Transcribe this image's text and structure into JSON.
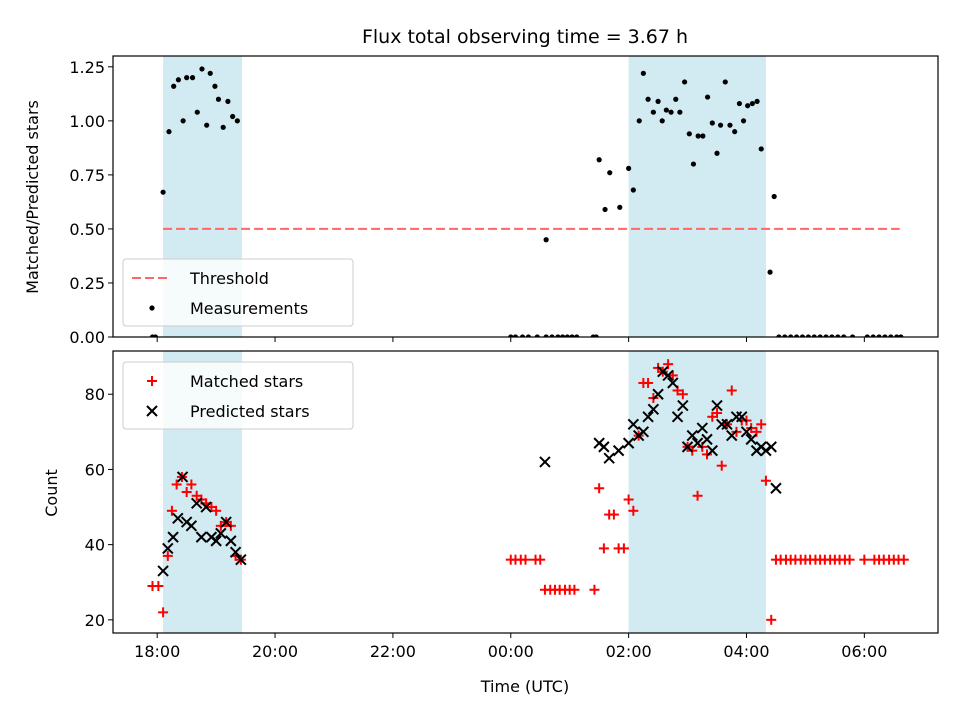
{
  "figure": {
    "title": "Flux total observing time = 3.67 h",
    "xlabel": "Time (UTC)"
  },
  "chart_data": [
    {
      "type": "scatter",
      "ylabel": "Matched/Predicted stars",
      "x_unit": "hours since 18:00 UTC (x tick labels shown)",
      "xlim": [
        -0.75,
        13.25
      ],
      "ylim": [
        0.0,
        1.3
      ],
      "x_ticks": [
        0,
        2,
        4,
        6,
        8,
        10,
        12
      ],
      "x_tick_labels": [
        "18:00",
        "20:00",
        "22:00",
        "00:00",
        "02:00",
        "04:00",
        "06:00"
      ],
      "y_ticks": [
        0.0,
        0.25,
        0.5,
        0.75,
        1.0,
        1.25
      ],
      "y_tick_labels": [
        "0.00",
        "0.25",
        "0.50",
        "0.75",
        "1.00",
        "1.25"
      ],
      "shaded_spans": [
        [
          0.1,
          1.44
        ],
        [
          8.0,
          10.33
        ]
      ],
      "shade_color": "#add8e6",
      "threshold": {
        "name": "Threshold",
        "y": 0.5,
        "x_range": [
          0.1,
          12.6
        ],
        "color": "#ff6666",
        "style": "dashed"
      },
      "series": [
        {
          "name": "Measurements",
          "color": "#000000",
          "marker": "dot",
          "points": [
            [
              -0.08,
              0.0
            ],
            [
              -0.03,
              0.0
            ],
            [
              0.1,
              0.67
            ],
            [
              0.2,
              0.95
            ],
            [
              0.28,
              1.16
            ],
            [
              0.36,
              1.19
            ],
            [
              0.44,
              1.0
            ],
            [
              0.5,
              1.2
            ],
            [
              0.6,
              1.2
            ],
            [
              0.68,
              1.04
            ],
            [
              0.76,
              1.24
            ],
            [
              0.84,
              0.98
            ],
            [
              0.9,
              1.22
            ],
            [
              0.98,
              1.16
            ],
            [
              1.04,
              1.1
            ],
            [
              1.12,
              0.97
            ],
            [
              1.2,
              1.09
            ],
            [
              1.28,
              1.02
            ],
            [
              1.36,
              1.0
            ],
            [
              6.0,
              0.0
            ],
            [
              6.08,
              0.0
            ],
            [
              6.2,
              0.0
            ],
            [
              6.3,
              0.0
            ],
            [
              6.45,
              0.0
            ],
            [
              6.6,
              0.45
            ],
            [
              6.6,
              0.0
            ],
            [
              6.7,
              0.0
            ],
            [
              6.8,
              0.0
            ],
            [
              6.88,
              0.0
            ],
            [
              6.96,
              0.0
            ],
            [
              7.04,
              0.0
            ],
            [
              7.12,
              0.0
            ],
            [
              7.4,
              0.0
            ],
            [
              7.45,
              0.0
            ],
            [
              7.5,
              0.82
            ],
            [
              7.6,
              0.59
            ],
            [
              7.68,
              0.76
            ],
            [
              7.85,
              0.6
            ],
            [
              8.0,
              0.78
            ],
            [
              8.08,
              0.68
            ],
            [
              8.18,
              1.0
            ],
            [
              8.25,
              1.22
            ],
            [
              8.33,
              1.1
            ],
            [
              8.42,
              1.04
            ],
            [
              8.5,
              1.09
            ],
            [
              8.57,
              1.0
            ],
            [
              8.64,
              1.05
            ],
            [
              8.72,
              1.04
            ],
            [
              8.8,
              1.1
            ],
            [
              8.87,
              1.04
            ],
            [
              8.95,
              1.18
            ],
            [
              9.03,
              0.94
            ],
            [
              9.1,
              0.8
            ],
            [
              9.18,
              0.93
            ],
            [
              9.26,
              0.93
            ],
            [
              9.34,
              1.11
            ],
            [
              9.42,
              0.99
            ],
            [
              9.5,
              0.85
            ],
            [
              9.56,
              0.98
            ],
            [
              9.64,
              1.18
            ],
            [
              9.72,
              0.98
            ],
            [
              9.8,
              0.95
            ],
            [
              9.88,
              1.08
            ],
            [
              9.95,
              1.0
            ],
            [
              10.02,
              1.07
            ],
            [
              10.1,
              1.08
            ],
            [
              10.18,
              1.09
            ],
            [
              10.25,
              0.87
            ],
            [
              10.4,
              0.3
            ],
            [
              10.47,
              0.65
            ],
            [
              10.55,
              0.0
            ],
            [
              10.65,
              0.0
            ],
            [
              10.75,
              0.0
            ],
            [
              10.85,
              0.0
            ],
            [
              10.95,
              0.0
            ],
            [
              11.05,
              0.0
            ],
            [
              11.15,
              0.0
            ],
            [
              11.25,
              0.0
            ],
            [
              11.35,
              0.0
            ],
            [
              11.45,
              0.0
            ],
            [
              11.55,
              0.0
            ],
            [
              11.65,
              0.0
            ],
            [
              11.8,
              0.0
            ],
            [
              12.05,
              0.0
            ],
            [
              12.15,
              0.0
            ],
            [
              12.25,
              0.0
            ],
            [
              12.35,
              0.0
            ],
            [
              12.45,
              0.0
            ],
            [
              12.55,
              0.0
            ],
            [
              12.62,
              0.0
            ]
          ]
        }
      ],
      "legend": {
        "position": "lower-left",
        "entries": [
          "Threshold",
          "Measurements"
        ]
      }
    },
    {
      "type": "scatter",
      "ylabel": "Count",
      "xlabel": "Time (UTC)",
      "x_unit": "hours since 18:00 UTC (x tick labels shown)",
      "xlim": [
        -0.75,
        13.25
      ],
      "ylim": [
        16.5,
        91.5
      ],
      "x_ticks": [
        0,
        2,
        4,
        6,
        8,
        10,
        12
      ],
      "x_tick_labels": [
        "18:00",
        "20:00",
        "22:00",
        "00:00",
        "02:00",
        "04:00",
        "06:00"
      ],
      "y_ticks": [
        20,
        40,
        60,
        80
      ],
      "y_tick_labels": [
        "20",
        "40",
        "60",
        "80"
      ],
      "shaded_spans": [
        [
          0.1,
          1.44
        ],
        [
          8.0,
          10.33
        ]
      ],
      "shade_color": "#add8e6",
      "series": [
        {
          "name": "Matched stars",
          "color": "#ff0000",
          "marker": "plus",
          "points": [
            [
              -0.08,
              29
            ],
            [
              0.02,
              29
            ],
            [
              0.1,
              22
            ],
            [
              0.18,
              37
            ],
            [
              0.25,
              49
            ],
            [
              0.33,
              56
            ],
            [
              0.42,
              58
            ],
            [
              0.5,
              54
            ],
            [
              0.58,
              56
            ],
            [
              0.67,
              53
            ],
            [
              0.75,
              52
            ],
            [
              0.83,
              51
            ],
            [
              0.92,
              50
            ],
            [
              1.0,
              49
            ],
            [
              1.08,
              45
            ],
            [
              1.17,
              46
            ],
            [
              1.25,
              45
            ],
            [
              1.33,
              37
            ],
            [
              1.42,
              36
            ],
            [
              6.0,
              36
            ],
            [
              6.08,
              36
            ],
            [
              6.17,
              36
            ],
            [
              6.25,
              36
            ],
            [
              6.42,
              36
            ],
            [
              6.5,
              36
            ],
            [
              6.58,
              28
            ],
            [
              6.67,
              28
            ],
            [
              6.75,
              28
            ],
            [
              6.83,
              28
            ],
            [
              6.92,
              28
            ],
            [
              7.0,
              28
            ],
            [
              7.08,
              28
            ],
            [
              7.42,
              28
            ],
            [
              7.5,
              55
            ],
            [
              7.58,
              39
            ],
            [
              7.67,
              48
            ],
            [
              7.75,
              48
            ],
            [
              7.83,
              39
            ],
            [
              7.92,
              39
            ],
            [
              8.0,
              52
            ],
            [
              8.08,
              49
            ],
            [
              8.17,
              69
            ],
            [
              8.25,
              83
            ],
            [
              8.33,
              83
            ],
            [
              8.42,
              79
            ],
            [
              8.5,
              87
            ],
            [
              8.58,
              86
            ],
            [
              8.67,
              88
            ],
            [
              8.75,
              85
            ],
            [
              8.83,
              81
            ],
            [
              8.92,
              80
            ],
            [
              9.0,
              66
            ],
            [
              9.08,
              65
            ],
            [
              9.17,
              53
            ],
            [
              9.25,
              66
            ],
            [
              9.33,
              64
            ],
            [
              9.42,
              74
            ],
            [
              9.5,
              75
            ],
            [
              9.58,
              61
            ],
            [
              9.67,
              72
            ],
            [
              9.75,
              81
            ],
            [
              9.83,
              70
            ],
            [
              9.92,
              73
            ],
            [
              10.0,
              73
            ],
            [
              10.08,
              71
            ],
            [
              10.17,
              70
            ],
            [
              10.25,
              72
            ],
            [
              10.33,
              57
            ],
            [
              10.42,
              20
            ],
            [
              10.5,
              36
            ],
            [
              10.58,
              36
            ],
            [
              10.67,
              36
            ],
            [
              10.75,
              36
            ],
            [
              10.83,
              36
            ],
            [
              10.92,
              36
            ],
            [
              11.0,
              36
            ],
            [
              11.08,
              36
            ],
            [
              11.17,
              36
            ],
            [
              11.25,
              36
            ],
            [
              11.33,
              36
            ],
            [
              11.42,
              36
            ],
            [
              11.5,
              36
            ],
            [
              11.58,
              36
            ],
            [
              11.67,
              36
            ],
            [
              11.75,
              36
            ],
            [
              12.0,
              36
            ],
            [
              12.17,
              36
            ],
            [
              12.25,
              36
            ],
            [
              12.33,
              36
            ],
            [
              12.42,
              36
            ],
            [
              12.5,
              36
            ],
            [
              12.58,
              36
            ],
            [
              12.67,
              36
            ]
          ]
        },
        {
          "name": "Predicted stars",
          "color": "#000000",
          "marker": "x",
          "points": [
            [
              0.1,
              33
            ],
            [
              0.18,
              39
            ],
            [
              0.27,
              42
            ],
            [
              0.35,
              47
            ],
            [
              0.43,
              58
            ],
            [
              0.5,
              46
            ],
            [
              0.58,
              45
            ],
            [
              0.67,
              51
            ],
            [
              0.75,
              42
            ],
            [
              0.83,
              50
            ],
            [
              0.92,
              42
            ],
            [
              1.0,
              41
            ],
            [
              1.08,
              43
            ],
            [
              1.17,
              46
            ],
            [
              1.25,
              41
            ],
            [
              1.33,
              38
            ],
            [
              1.42,
              36
            ],
            [
              6.58,
              62
            ],
            [
              7.5,
              67
            ],
            [
              7.58,
              66
            ],
            [
              7.67,
              63
            ],
            [
              7.83,
              65
            ],
            [
              8.0,
              67
            ],
            [
              8.08,
              72
            ],
            [
              8.17,
              69
            ],
            [
              8.25,
              70
            ],
            [
              8.33,
              74
            ],
            [
              8.42,
              76
            ],
            [
              8.5,
              80
            ],
            [
              8.58,
              86
            ],
            [
              8.67,
              85
            ],
            [
              8.75,
              83
            ],
            [
              8.83,
              74
            ],
            [
              8.92,
              77
            ],
            [
              9.0,
              66
            ],
            [
              9.08,
              69
            ],
            [
              9.17,
              67
            ],
            [
              9.25,
              71
            ],
            [
              9.33,
              68
            ],
            [
              9.42,
              65
            ],
            [
              9.5,
              77
            ],
            [
              9.58,
              72
            ],
            [
              9.67,
              72
            ],
            [
              9.75,
              69
            ],
            [
              9.83,
              74
            ],
            [
              9.92,
              74
            ],
            [
              10.0,
              70
            ],
            [
              10.08,
              68
            ],
            [
              10.17,
              65
            ],
            [
              10.25,
              66
            ],
            [
              10.33,
              65
            ],
            [
              10.42,
              66
            ],
            [
              10.5,
              55
            ]
          ]
        }
      ],
      "legend": {
        "position": "upper-left",
        "entries": [
          "Matched stars",
          "Predicted stars"
        ]
      }
    }
  ]
}
